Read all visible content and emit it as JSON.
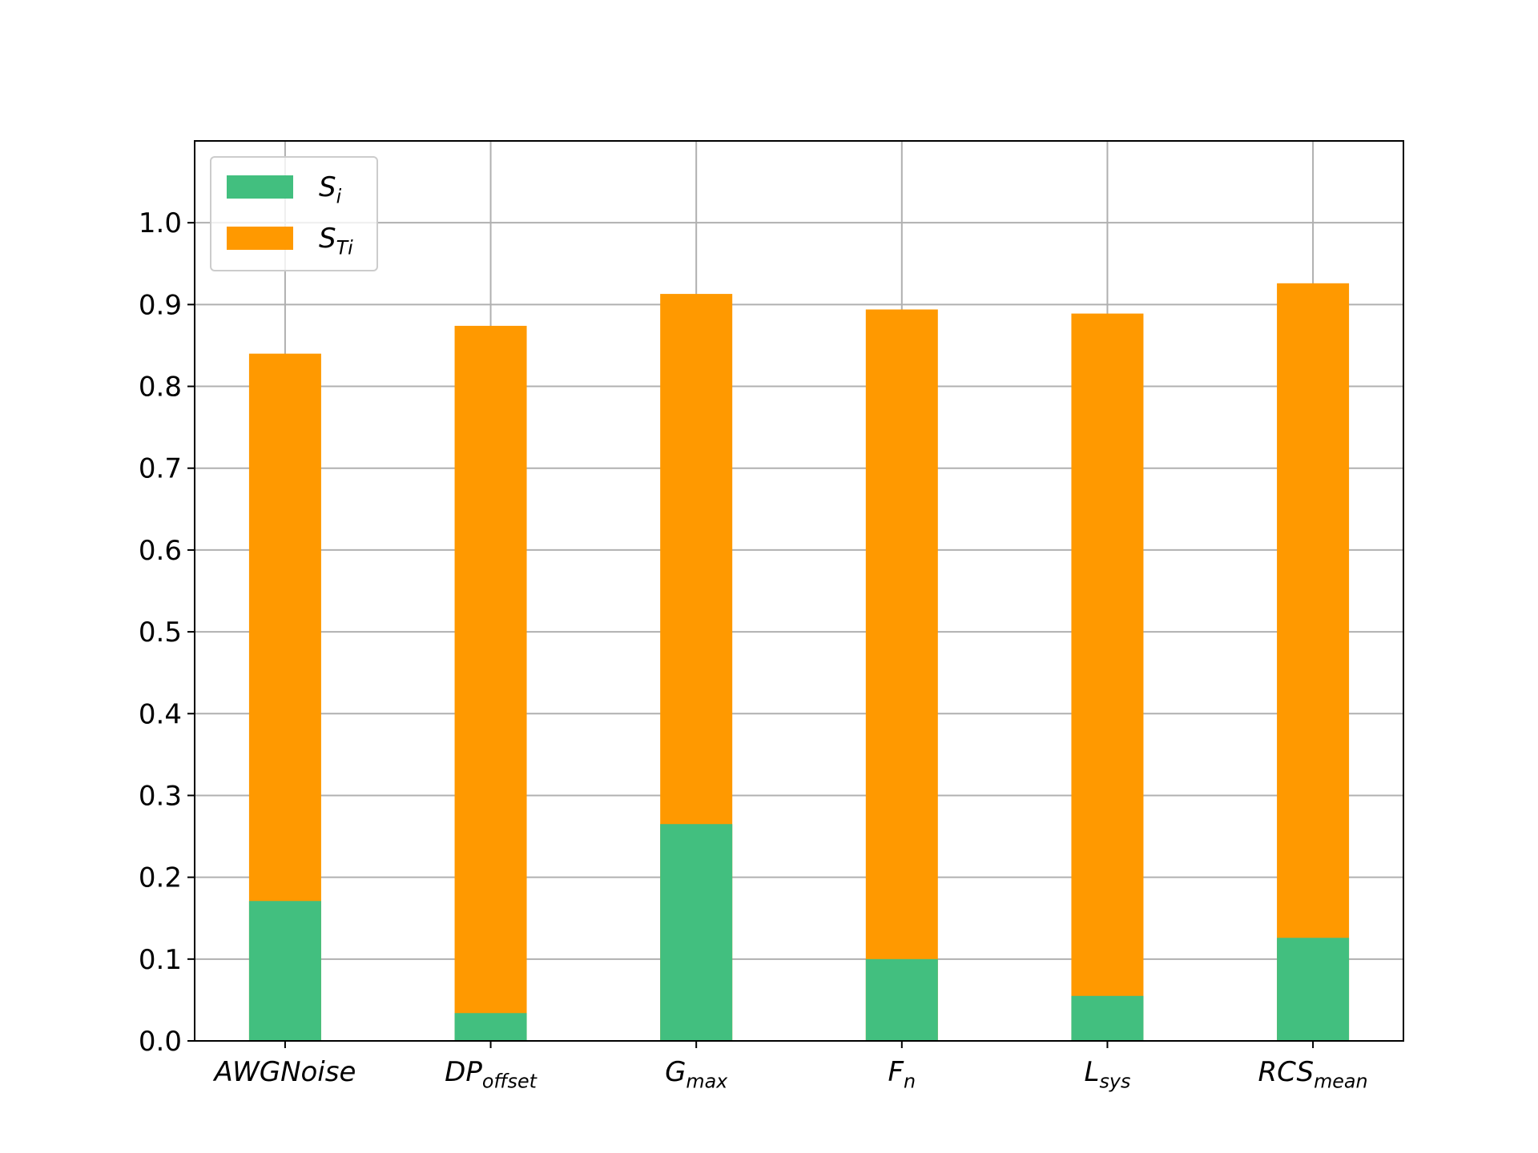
{
  "chart_data": {
    "type": "bar",
    "overlay": true,
    "categories": [
      [
        "AWGNoise"
      ],
      [
        "DP",
        "offset"
      ],
      [
        "G",
        "max"
      ],
      [
        "F",
        "n"
      ],
      [
        "L",
        "sys"
      ],
      [
        "RCS",
        "mean"
      ]
    ],
    "series": [
      {
        "name": [
          "S",
          "Ti"
        ],
        "color": "#ff9900",
        "values": [
          0.84,
          0.874,
          0.913,
          0.894,
          0.889,
          0.926
        ]
      },
      {
        "name": [
          "S",
          "i"
        ],
        "color": "#42bf7f",
        "values": [
          0.171,
          0.034,
          0.265,
          0.1,
          0.055,
          0.126
        ]
      }
    ],
    "legend_order": [
      1,
      0
    ],
    "ylim": [
      0,
      1.1
    ],
    "yticks": [
      {
        "value": 0,
        "label": "0.0"
      },
      0.1,
      0.2,
      0.3,
      0.4,
      0.5,
      0.6,
      0.7,
      0.8,
      0.9,
      {
        "value": 1,
        "label": "1.0"
      }
    ],
    "grid": true,
    "legend": "upper left"
  }
}
